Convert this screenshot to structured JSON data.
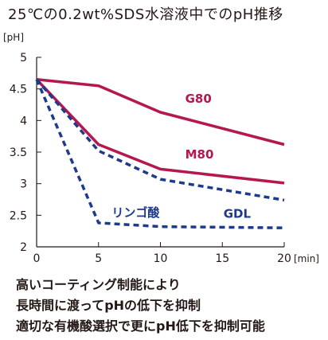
{
  "title": "25℃の0.2wt%SDS水溶液中でのpH推移",
  "colors": {
    "text": "#231815",
    "crimson": "#b4184f",
    "navy": "#1e3a8a",
    "axis": "#231815"
  },
  "chart_data": {
    "type": "line",
    "title": "25℃の0.2wt%SDS水溶液中でのpH推移",
    "xlabel": "[min]",
    "ylabel": "[pH]",
    "xlim": [
      0,
      20
    ],
    "ylim": [
      2,
      5
    ],
    "x_ticks": [
      0,
      5,
      10,
      15,
      20
    ],
    "y_ticks": [
      2,
      2.5,
      3,
      3.5,
      4,
      4.5,
      5
    ],
    "x_tick_labels": [
      "0",
      "5",
      "10",
      "15",
      "20"
    ],
    "y_tick_labels": [
      "2",
      "2.5",
      "3",
      "3.5",
      "4",
      "4.5",
      "5"
    ],
    "grid": false,
    "series": [
      {
        "name": "G80",
        "x": [
          0,
          5,
          10,
          20
        ],
        "values": [
          4.65,
          4.55,
          4.13,
          3.62
        ],
        "color": "#b4184f",
        "style": "solid"
      },
      {
        "name": "M80",
        "x": [
          0,
          5,
          10,
          20
        ],
        "values": [
          4.65,
          3.62,
          3.23,
          3.01
        ],
        "color": "#b4184f",
        "style": "solid"
      },
      {
        "name": "GDL",
        "x": [
          0,
          5,
          10,
          20
        ],
        "values": [
          4.65,
          3.52,
          3.07,
          2.74
        ],
        "color": "#1e3a8a",
        "style": "dashed"
      },
      {
        "name": "リンゴ酸",
        "x": [
          0,
          5,
          10,
          20
        ],
        "values": [
          4.65,
          2.38,
          2.32,
          2.3
        ],
        "color": "#1e3a8a",
        "style": "dashed"
      }
    ]
  },
  "notes": [
    "高いコーティング制能により",
    "長時間に渡ってpHの低下を抑制",
    "適切な有機酸選択で更にpH低下を抑制可能"
  ]
}
